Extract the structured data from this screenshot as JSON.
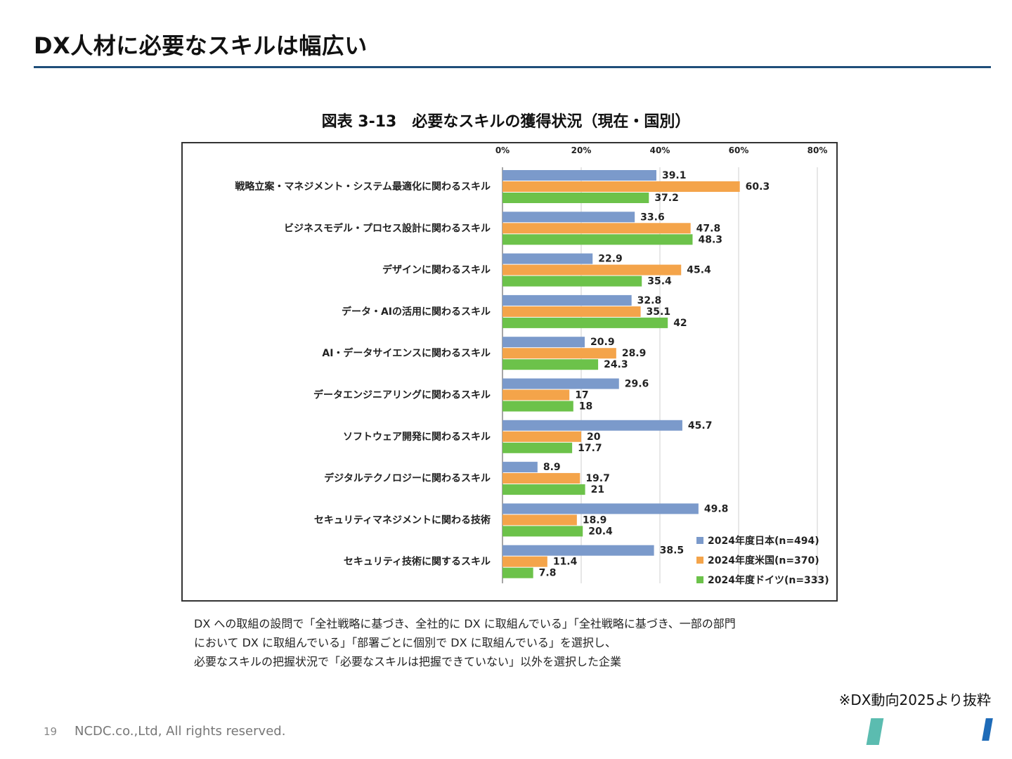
{
  "slide": {
    "title": "DX人材に必要なスキルは幅広い",
    "page_number": "19",
    "copyright": "NCDC.co.,Ltd, All rights reserved.",
    "source_note": "※DX動向2025より抜粋"
  },
  "chart_data": {
    "type": "bar",
    "orientation": "horizontal",
    "figure_label": "図表 3-13",
    "title": "必要なスキルの獲得状況（現在・国別）",
    "xlim": [
      0,
      80
    ],
    "xticks": [
      "0%",
      "20%",
      "40%",
      "60%",
      "80%"
    ],
    "grid": true,
    "legend_position": "bottom-right",
    "categories": [
      "戦略立案・マネジメント・システム最適化に関わるスキル",
      "ビジネスモデル・プロセス設計に関わるスキル",
      "デザインに関わるスキル",
      "データ・AIの活用に関わるスキル",
      "AI・データサイエンスに関わるスキル",
      "データエンジニアリングに関わるスキル",
      "ソフトウェア開発に関わるスキル",
      "デジタルテクノロジーに関わるスキル",
      "セキュリティマネジメントに関わる技術",
      "セキュリティ技術に関するスキル"
    ],
    "series": [
      {
        "name": "2024年度日本(n=494)",
        "color": "#7b9acb",
        "values": [
          39.1,
          33.6,
          22.9,
          32.8,
          20.9,
          29.6,
          45.7,
          8.9,
          49.8,
          38.5
        ],
        "labels": [
          "39.1",
          "33.6",
          "22.9",
          "32.8",
          "20.9",
          "29.6",
          "45.7",
          "8.9",
          "49.8",
          "38.5"
        ]
      },
      {
        "name": "2024年度米国(n=370)",
        "color": "#f4a44a",
        "values": [
          60.3,
          47.8,
          45.4,
          35.1,
          28.9,
          17,
          20,
          19.7,
          18.9,
          11.4
        ],
        "labels": [
          "60.3",
          "47.8",
          "45.4",
          "35.1",
          "28.9",
          "17",
          "20",
          "19.7",
          "18.9",
          "11.4"
        ]
      },
      {
        "name": "2024年度ドイツ(n=333)",
        "color": "#6cc24a",
        "values": [
          37.2,
          48.3,
          35.4,
          42,
          24.3,
          18,
          17.7,
          21,
          20.4,
          7.8
        ],
        "labels": [
          "37.2",
          "48.3",
          "35.4",
          "42",
          "24.3",
          "18",
          "17.7",
          "21",
          "20.4",
          "7.8"
        ]
      }
    ]
  },
  "notes": [
    "DX への取組の設問で「全社戦略に基づき、全社的に DX に取組んでいる」「全社戦略に基づき、一部の部門",
    "において DX に取組んでいる」「部署ごとに個別で DX に取組んでいる」を選択し、",
    "必要なスキルの把握状況で「必要なスキルは把握できていない」以外を選択した企業"
  ]
}
